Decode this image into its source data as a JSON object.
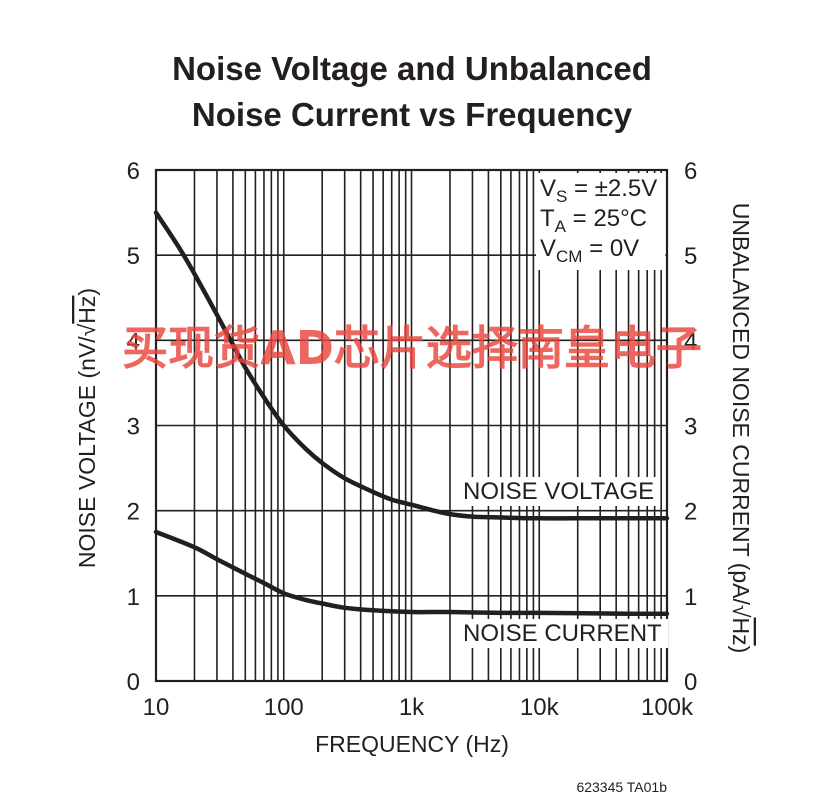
{
  "chart_data": {
    "type": "line",
    "title": "Noise Voltage and Unbalanced Noise Current vs Frequency",
    "title_lines": [
      "Noise Voltage and Unbalanced",
      "Noise Current vs Frequency"
    ],
    "xlabel": "FREQUENCY (Hz)",
    "ylabel": "NOISE VOLTAGE (nV/√Hz)",
    "ylabel_parts": [
      "NOISE VOLTAGE (nV/",
      "Hz",
      ")"
    ],
    "y2label": "UNBALANCED NOISE CURRENT (pA/√Hz)",
    "y2label_parts": [
      "UNBALANCED NOISE CURRENT (pA/",
      "Hz",
      ")"
    ],
    "xscale": "log",
    "xlim": [
      10,
      100000
    ],
    "ylim": [
      0,
      6
    ],
    "y2lim": [
      0,
      6
    ],
    "grid": true,
    "x_ticks": [
      10,
      100,
      1000,
      10000,
      100000
    ],
    "x_tick_labels": [
      "10",
      "100",
      "1k",
      "10k",
      "100k"
    ],
    "y_ticks": [
      0,
      1,
      2,
      3,
      4,
      5,
      6
    ],
    "y_tick_labels": [
      "0",
      "1",
      "2",
      "3",
      "4",
      "5",
      "6"
    ],
    "y2_tick_labels": [
      "0",
      "1",
      "2",
      "3",
      "4",
      "5",
      "6"
    ],
    "conditions": [
      {
        "main": "V",
        "sub": "S",
        "rest": " = ±2.5V"
      },
      {
        "main": "T",
        "sub": "A",
        "rest": " = 25°C"
      },
      {
        "main": "V",
        "sub": "CM",
        "rest": " = 0V"
      }
    ],
    "series": [
      {
        "name": "NOISE VOLTAGE",
        "axis": "left",
        "x": [
          10,
          15,
          20,
          30,
          40,
          50,
          70,
          100,
          150,
          200,
          300,
          500,
          700,
          1000,
          1500,
          2000,
          3000,
          5000,
          10000,
          20000,
          50000,
          100000
        ],
        "y": [
          5.5,
          5.1,
          4.78,
          4.3,
          3.95,
          3.68,
          3.33,
          3.0,
          2.72,
          2.56,
          2.38,
          2.22,
          2.13,
          2.07,
          2.0,
          1.96,
          1.93,
          1.92,
          1.91,
          1.91,
          1.91,
          1.91
        ]
      },
      {
        "name": "NOISE CURRENT",
        "axis": "right",
        "x": [
          10,
          20,
          30,
          50,
          70,
          100,
          150,
          200,
          300,
          500,
          1000,
          2000,
          5000,
          10000,
          50000,
          100000
        ],
        "y": [
          1.75,
          1.57,
          1.43,
          1.26,
          1.15,
          1.03,
          0.95,
          0.91,
          0.86,
          0.83,
          0.81,
          0.81,
          0.8,
          0.8,
          0.79,
          0.79
        ]
      }
    ]
  },
  "document_id": "623345 TA01b",
  "watermark": "买现货AD芯片选择南皇电子"
}
